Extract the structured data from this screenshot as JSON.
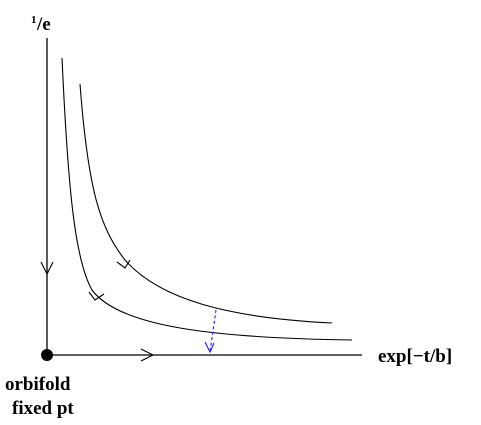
{
  "labels": {
    "y_axis_sup": "1",
    "y_axis_main": "/e",
    "x_axis": "exp[−t/b]",
    "origin_line1": "orbifold",
    "origin_line2": "fixed pt"
  },
  "colors": {
    "lines": "#000000",
    "dashed_arrow": "#1a1aff",
    "origin_dot": "#000000"
  }
}
